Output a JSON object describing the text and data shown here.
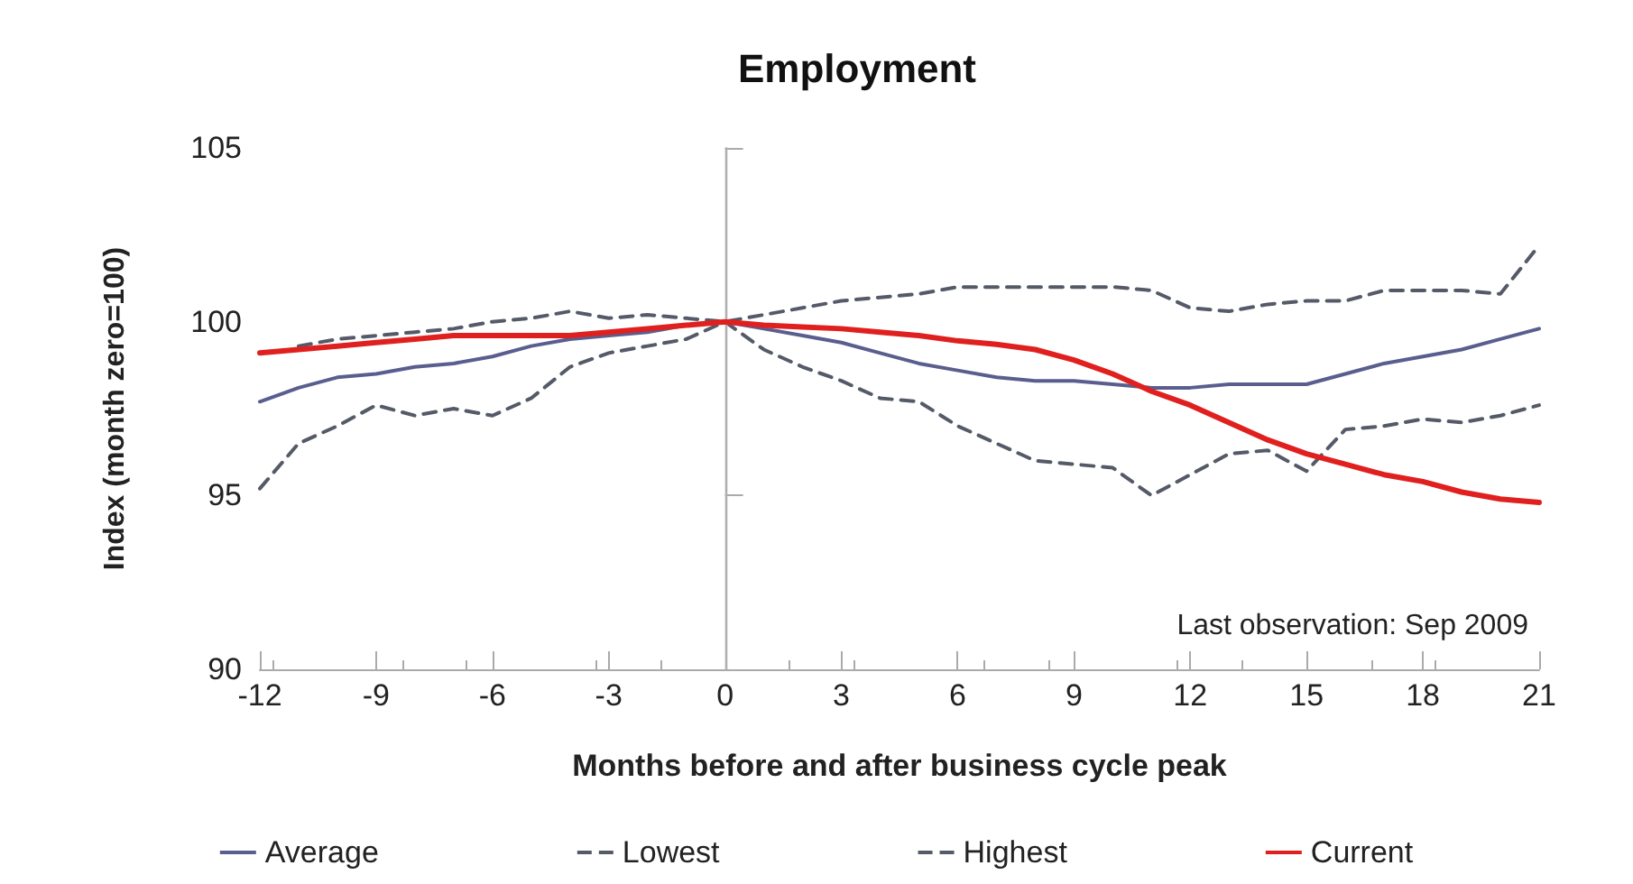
{
  "chart_data": {
    "type": "line",
    "title": "Employment",
    "xlabel": "Months before and after business cycle peak",
    "ylabel": "Index (month zero=100)",
    "annotations": [
      "Last observation: Sep 2009"
    ],
    "x": [
      -12,
      -11,
      -10,
      -9,
      -8,
      -7,
      -6,
      -5,
      -4,
      -3,
      -2,
      -1,
      0,
      1,
      2,
      3,
      4,
      5,
      6,
      7,
      8,
      9,
      10,
      11,
      12,
      13,
      14,
      15,
      16,
      17,
      18,
      19,
      20,
      21
    ],
    "series": [
      {
        "name": "Average",
        "color": "#5a5e8e",
        "line_style": "solid",
        "values": [
          97.7,
          98.1,
          98.4,
          98.5,
          98.7,
          98.8,
          99.0,
          99.3,
          99.5,
          99.6,
          99.7,
          99.9,
          100,
          99.8,
          99.6,
          99.4,
          99.1,
          98.8,
          98.6,
          98.4,
          98.3,
          98.3,
          98.2,
          98.1,
          98.1,
          98.2,
          98.2,
          98.2,
          98.5,
          98.8,
          99.0,
          99.2,
          99.5,
          99.8
        ]
      },
      {
        "name": "Lowest",
        "color": "#555a68",
        "line_style": "dashed",
        "values": [
          95.2,
          96.5,
          97.0,
          97.6,
          97.3,
          97.5,
          97.3,
          97.8,
          98.7,
          99.1,
          99.3,
          99.5,
          100,
          99.2,
          98.7,
          98.3,
          97.8,
          97.7,
          97.0,
          96.5,
          96.0,
          95.9,
          95.8,
          95.0,
          95.6,
          96.2,
          96.3,
          95.7,
          96.9,
          97.0,
          97.2,
          97.1,
          97.3,
          97.6
        ]
      },
      {
        "name": "Highest",
        "color": "#555a68",
        "line_style": "dashed",
        "values": [
          null,
          99.3,
          99.5,
          99.6,
          99.7,
          99.8,
          100.0,
          100.1,
          100.3,
          100.1,
          100.2,
          100.1,
          100,
          100.2,
          100.4,
          100.6,
          100.7,
          100.8,
          101.0,
          101.0,
          101.0,
          101.0,
          101.0,
          100.9,
          100.4,
          100.3,
          100.5,
          100.6,
          100.6,
          100.9,
          100.9,
          100.9,
          100.8,
          102.2
        ]
      },
      {
        "name": "Current",
        "color": "#e0201f",
        "line_style": "solid",
        "values": [
          99.1,
          99.2,
          99.3,
          99.4,
          99.5,
          99.6,
          99.6,
          99.6,
          99.6,
          99.7,
          99.8,
          99.9,
          100,
          99.9,
          99.85,
          99.8,
          99.7,
          99.6,
          99.45,
          99.35,
          99.2,
          98.9,
          98.5,
          98.0,
          97.6,
          97.1,
          96.6,
          96.2,
          95.9,
          95.6,
          95.4,
          95.1,
          94.9,
          94.8
        ]
      }
    ],
    "xlim": [
      -12,
      21
    ],
    "xticks": [
      -12,
      -9,
      -6,
      -3,
      0,
      3,
      6,
      9,
      12,
      15,
      18,
      21
    ],
    "ylim": [
      90,
      105
    ],
    "yticks": [
      90,
      95,
      100,
      105
    ],
    "ref_lines": [
      {
        "axis": "x",
        "value": 0,
        "color": "#b0b0b0"
      }
    ],
    "grid": false,
    "legend": "bottom",
    "marker": "none"
  }
}
